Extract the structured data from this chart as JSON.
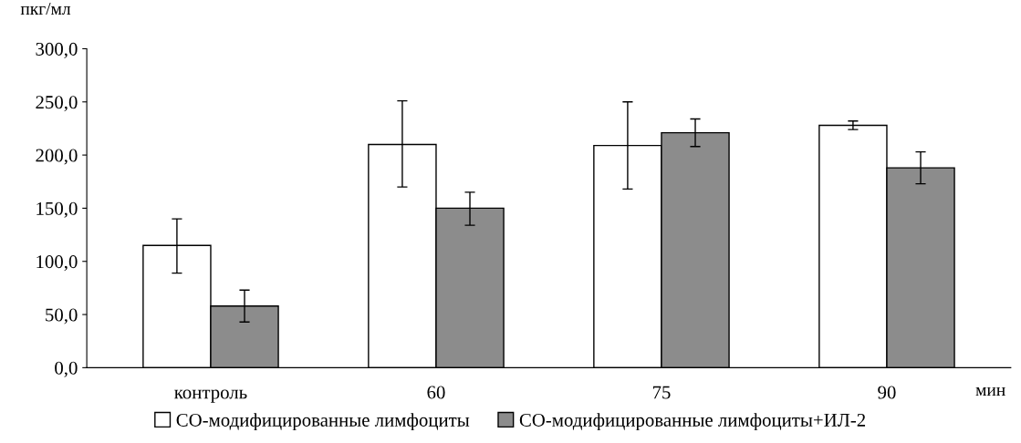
{
  "chart_data": {
    "type": "bar",
    "ylabel": "пкг/мл",
    "xlabel": "мин",
    "categories": [
      "контроль",
      "60",
      "75",
      "90"
    ],
    "series": [
      {
        "name": "CO-модифицированные лимфоциты",
        "color": "#ffffff",
        "values": [
          115,
          210,
          209,
          228
        ],
        "errors": [
          [
            89,
            140
          ],
          [
            170,
            251
          ],
          [
            168,
            250
          ],
          [
            224,
            232
          ]
        ]
      },
      {
        "name": "CO-модифицированные лимфоциты+ИЛ-2",
        "color": "#8c8c8c",
        "values": [
          58,
          150,
          221,
          188
        ],
        "errors": [
          [
            43,
            73
          ],
          [
            134,
            165
          ],
          [
            208,
            234
          ],
          [
            173,
            203
          ]
        ]
      }
    ],
    "ylim": [
      0,
      300
    ],
    "yticks": [
      {
        "value": 0,
        "label": "0,0"
      },
      {
        "value": 50,
        "label": "50,0"
      },
      {
        "value": 100,
        "label": "100,0"
      },
      {
        "value": 150,
        "label": "150,0"
      },
      {
        "value": 200,
        "label": "200,0"
      },
      {
        "value": 250,
        "label": "250,0"
      },
      {
        "value": 300,
        "label": "300,0"
      }
    ],
    "grid": false,
    "legend": "bottom"
  }
}
